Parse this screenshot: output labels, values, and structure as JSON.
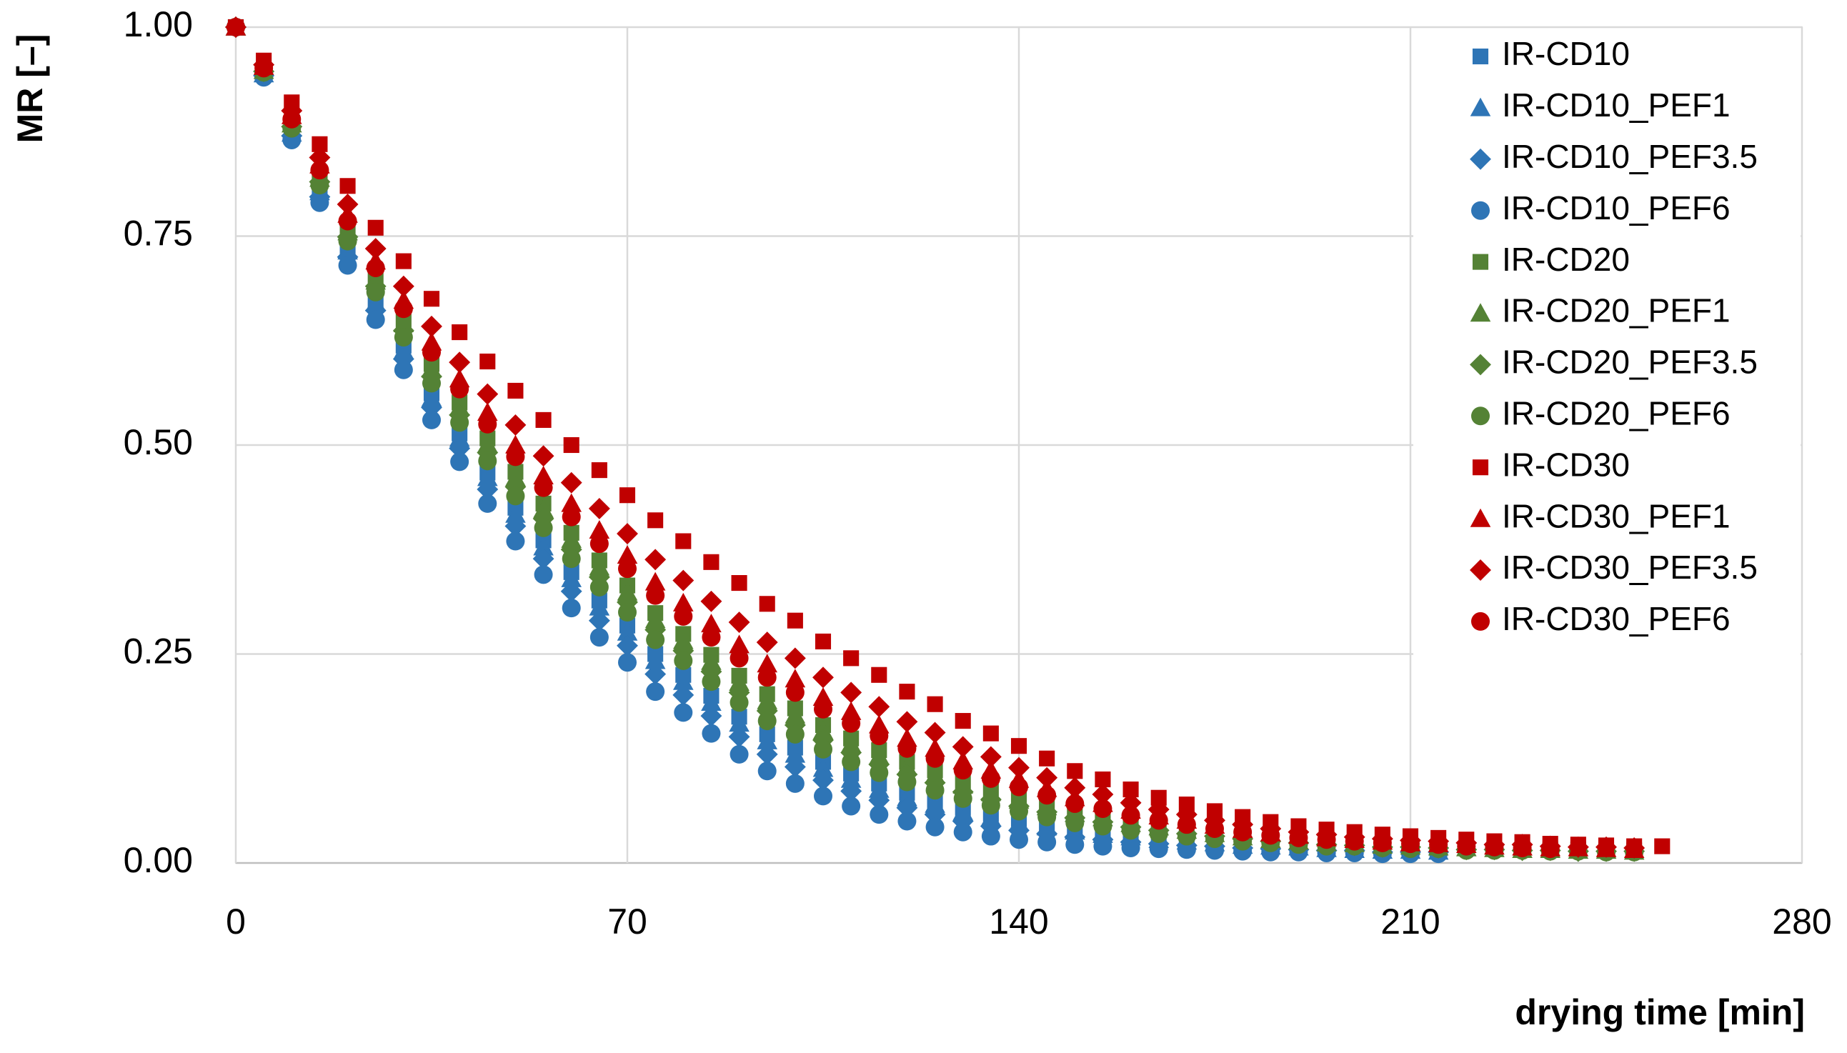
{
  "chart_data": {
    "type": "scatter",
    "xlabel": "drying time [min]",
    "ylabel": "MR [–]",
    "xlim": [
      0,
      280
    ],
    "xticks": [
      0,
      70,
      140,
      210,
      280
    ],
    "ylim": [
      0,
      1
    ],
    "yticks": [
      {
        "value": 0,
        "label": "0.00"
      },
      {
        "value": 0.25,
        "label": "0.25"
      },
      {
        "value": 0.5,
        "label": "0.50"
      },
      {
        "value": 0.75,
        "label": "0.75"
      },
      {
        "value": 1,
        "label": "1.00"
      }
    ],
    "grid": true,
    "legend": "upper right",
    "x": [
      0,
      5,
      10,
      15,
      20,
      25,
      30,
      35,
      40,
      45,
      50,
      55,
      60,
      65,
      70,
      75,
      80,
      85,
      90,
      95,
      100,
      105,
      110,
      115,
      120,
      125,
      130,
      135,
      140,
      145,
      150,
      155,
      160,
      165,
      170,
      175,
      180,
      185,
      190,
      195,
      200,
      205,
      210,
      215,
      220,
      225,
      230,
      235,
      240,
      245,
      250,
      255
    ],
    "series": [
      {
        "name": "IR-CD10",
        "color": "#2e75b6",
        "marker": "square",
        "values": [
          1,
          0.944,
          0.875,
          0.805,
          0.736,
          0.674,
          0.619,
          0.562,
          0.514,
          0.467,
          0.425,
          0.386,
          0.348,
          0.314,
          0.284,
          0.25,
          0.225,
          0.2,
          0.175,
          0.154,
          0.138,
          0.121,
          0.107,
          0.095,
          0.084,
          0.075,
          0.066,
          0.059,
          0.053,
          0.047,
          0.041,
          0.038,
          0.033,
          0.03,
          0.028,
          0.025,
          0.023,
          0.021,
          0.02,
          0.018,
          0.018,
          0.016,
          0.016,
          0.015,
          null,
          null,
          null,
          null,
          null,
          null,
          null,
          null
        ]
      },
      {
        "name": "IR-CD10_PEF1",
        "color": "#2e75b6",
        "marker": "triangle",
        "values": [
          1,
          0.944,
          0.873,
          0.803,
          0.732,
          0.67,
          0.613,
          0.556,
          0.508,
          0.461,
          0.417,
          0.378,
          0.34,
          0.306,
          0.276,
          0.242,
          0.217,
          0.192,
          0.167,
          0.146,
          0.13,
          0.113,
          0.1,
          0.088,
          0.078,
          0.07,
          0.061,
          0.054,
          0.048,
          0.043,
          0.038,
          0.034,
          0.031,
          0.028,
          0.026,
          0.024,
          0.021,
          0.02,
          0.019,
          0.017,
          0.016,
          0.015,
          0.015,
          0.014,
          null,
          null,
          null,
          null,
          null,
          null,
          null,
          null
        ]
      },
      {
        "name": "IR-CD10_PEF3.5",
        "color": "#2e75b6",
        "marker": "diamond",
        "values": [
          1,
          0.942,
          0.87,
          0.797,
          0.725,
          0.661,
          0.603,
          0.545,
          0.496,
          0.447,
          0.403,
          0.364,
          0.325,
          0.29,
          0.26,
          0.226,
          0.201,
          0.176,
          0.151,
          0.13,
          0.115,
          0.099,
          0.086,
          0.075,
          0.066,
          0.058,
          0.05,
          0.044,
          0.039,
          0.035,
          0.031,
          0.028,
          0.025,
          0.023,
          0.021,
          0.02,
          0.018,
          0.017,
          0.016,
          0.015,
          0.015,
          0.013,
          0.013,
          0.013,
          null,
          null,
          null,
          null,
          null,
          null,
          null,
          null
        ]
      },
      {
        "name": "IR-CD10_PEF6",
        "color": "#2e75b6",
        "marker": "circle",
        "values": [
          1,
          0.94,
          0.865,
          0.79,
          0.715,
          0.65,
          0.59,
          0.53,
          0.48,
          0.43,
          0.385,
          0.345,
          0.305,
          0.27,
          0.24,
          0.205,
          0.18,
          0.155,
          0.13,
          0.11,
          0.095,
          0.08,
          0.068,
          0.058,
          0.05,
          0.043,
          0.037,
          0.032,
          0.028,
          0.025,
          0.022,
          0.02,
          0.018,
          0.017,
          0.016,
          0.015,
          0.014,
          0.013,
          0.013,
          0.012,
          0.012,
          0.011,
          0.011,
          0.011,
          null,
          null,
          null,
          null,
          null,
          null,
          null,
          null
        ]
      },
      {
        "name": "IR-CD20",
        "color": "#548235",
        "marker": "square",
        "values": [
          1,
          0.949,
          0.886,
          0.822,
          0.759,
          0.701,
          0.65,
          0.597,
          0.551,
          0.508,
          0.468,
          0.43,
          0.395,
          0.362,
          0.332,
          0.299,
          0.274,
          0.249,
          0.224,
          0.202,
          0.185,
          0.165,
          0.149,
          0.135,
          0.121,
          0.111,
          0.098,
          0.089,
          0.08,
          0.071,
          0.062,
          0.057,
          0.05,
          0.045,
          0.041,
          0.037,
          0.033,
          0.03,
          0.027,
          0.025,
          0.024,
          0.022,
          0.021,
          0.02,
          0.018,
          0.017,
          0.017,
          0.016,
          0.016,
          0.015,
          0.015,
          null
        ]
      },
      {
        "name": "IR-CD20_PEF1",
        "color": "#548235",
        "marker": "triangle",
        "values": [
          1,
          0.948,
          0.884,
          0.819,
          0.755,
          0.696,
          0.645,
          0.591,
          0.545,
          0.501,
          0.461,
          0.423,
          0.387,
          0.354,
          0.324,
          0.291,
          0.266,
          0.241,
          0.216,
          0.194,
          0.177,
          0.158,
          0.142,
          0.128,
          0.115,
          0.105,
          0.093,
          0.084,
          0.075,
          0.067,
          0.059,
          0.054,
          0.047,
          0.043,
          0.039,
          0.035,
          0.031,
          0.028,
          0.026,
          0.024,
          0.023,
          0.021,
          0.02,
          0.019,
          0.018,
          0.017,
          0.016,
          0.016,
          0.015,
          0.015,
          0.014,
          null
        ]
      },
      {
        "name": "IR-CD20_PEF3.5",
        "color": "#548235",
        "marker": "diamond",
        "values": [
          1,
          0.947,
          0.881,
          0.815,
          0.749,
          0.69,
          0.637,
          0.582,
          0.536,
          0.491,
          0.45,
          0.412,
          0.375,
          0.342,
          0.312,
          0.279,
          0.254,
          0.229,
          0.204,
          0.182,
          0.165,
          0.147,
          0.132,
          0.118,
          0.106,
          0.096,
          0.085,
          0.076,
          0.068,
          0.061,
          0.054,
          0.049,
          0.043,
          0.039,
          0.035,
          0.032,
          0.029,
          0.026,
          0.024,
          0.022,
          0.021,
          0.019,
          0.019,
          0.018,
          0.016,
          0.016,
          0.015,
          0.015,
          0.014,
          0.014,
          0.014,
          null
        ]
      },
      {
        "name": "IR-CD20_PEF6",
        "color": "#548235",
        "marker": "circle",
        "values": [
          1,
          0.946,
          0.879,
          0.811,
          0.744,
          0.683,
          0.629,
          0.574,
          0.527,
          0.481,
          0.439,
          0.401,
          0.364,
          0.33,
          0.3,
          0.267,
          0.242,
          0.217,
          0.192,
          0.17,
          0.154,
          0.136,
          0.121,
          0.108,
          0.097,
          0.087,
          0.077,
          0.069,
          0.062,
          0.055,
          0.048,
          0.044,
          0.039,
          0.035,
          0.032,
          0.029,
          0.026,
          0.024,
          0.022,
          0.02,
          0.02,
          0.018,
          0.017,
          0.017,
          0.015,
          0.015,
          0.015,
          0.014,
          0.014,
          0.013,
          0.013,
          null
        ]
      },
      {
        "name": "IR-CD30",
        "color": "#c00000",
        "marker": "square",
        "values": [
          1,
          0.96,
          0.91,
          0.86,
          0.81,
          0.76,
          0.72,
          0.675,
          0.635,
          0.6,
          0.565,
          0.53,
          0.5,
          0.47,
          0.44,
          0.41,
          0.385,
          0.36,
          0.335,
          0.31,
          0.29,
          0.265,
          0.245,
          0.225,
          0.205,
          0.19,
          0.17,
          0.155,
          0.14,
          0.125,
          0.11,
          0.1,
          0.088,
          0.078,
          0.07,
          0.062,
          0.055,
          0.049,
          0.044,
          0.04,
          0.037,
          0.034,
          0.032,
          0.03,
          0.028,
          0.026,
          0.025,
          0.023,
          0.022,
          0.021,
          0.02,
          0.02
        ]
      },
      {
        "name": "IR-CD30_PEF1",
        "color": "#c00000",
        "marker": "triangle",
        "values": [
          1,
          0.953,
          0.894,
          0.835,
          0.776,
          0.72,
          0.673,
          0.623,
          0.579,
          0.539,
          0.5,
          0.463,
          0.43,
          0.398,
          0.368,
          0.336,
          0.311,
          0.286,
          0.261,
          0.238,
          0.22,
          0.198,
          0.181,
          0.165,
          0.149,
          0.137,
          0.122,
          0.111,
          0.1,
          0.089,
          0.078,
          0.071,
          0.063,
          0.056,
          0.051,
          0.045,
          0.04,
          0.036,
          0.033,
          0.03,
          0.028,
          0.026,
          0.024,
          0.023,
          0.022,
          0.02,
          0.019,
          0.018,
          0.018,
          0.017,
          0.016,
          null
        ]
      },
      {
        "name": "IR-CD30_PEF3.5",
        "color": "#c00000",
        "marker": "diamond",
        "values": [
          1,
          0.955,
          0.9,
          0.844,
          0.788,
          0.735,
          0.69,
          0.642,
          0.599,
          0.561,
          0.524,
          0.487,
          0.455,
          0.424,
          0.394,
          0.363,
          0.338,
          0.313,
          0.288,
          0.264,
          0.245,
          0.222,
          0.204,
          0.187,
          0.169,
          0.156,
          0.139,
          0.127,
          0.114,
          0.102,
          0.09,
          0.082,
          0.072,
          0.064,
          0.058,
          0.051,
          0.046,
          0.041,
          0.037,
          0.034,
          0.031,
          0.029,
          0.027,
          0.026,
          0.024,
          0.022,
          0.022,
          0.02,
          0.019,
          0.019,
          0.018,
          null
        ]
      },
      {
        "name": "IR-CD30_PEF6",
        "color": "#c00000",
        "marker": "circle",
        "values": [
          1,
          0.951,
          0.89,
          0.829,
          0.768,
          0.712,
          0.663,
          0.611,
          0.567,
          0.525,
          0.486,
          0.449,
          0.414,
          0.382,
          0.352,
          0.32,
          0.295,
          0.27,
          0.245,
          0.222,
          0.204,
          0.184,
          0.167,
          0.152,
          0.137,
          0.125,
          0.111,
          0.101,
          0.091,
          0.081,
          0.071,
          0.065,
          0.057,
          0.051,
          0.046,
          0.041,
          0.037,
          0.033,
          0.03,
          0.028,
          0.026,
          0.024,
          0.023,
          0.022,
          0.02,
          0.019,
          0.018,
          0.017,
          null,
          null,
          null,
          null
        ]
      }
    ]
  }
}
